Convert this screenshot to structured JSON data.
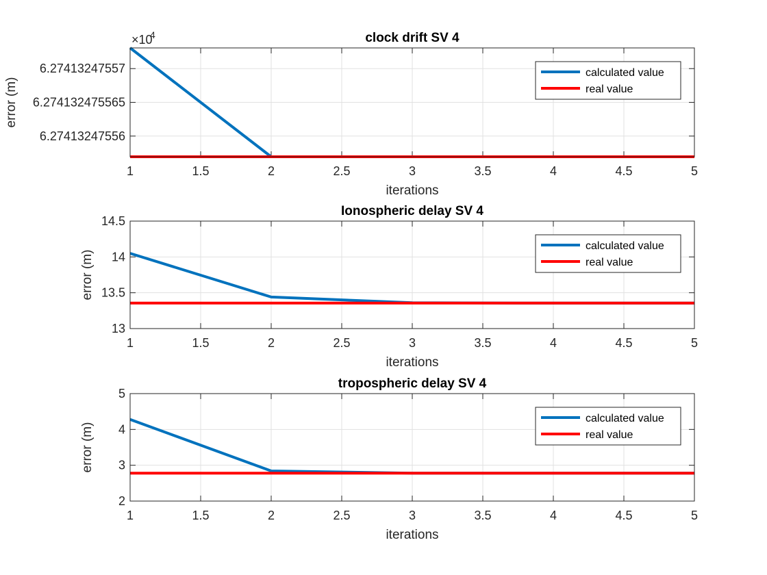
{
  "chart_data": [
    {
      "type": "line",
      "title": "clock drift SV 4",
      "xlabel": "iterations",
      "ylabel": "error (m)",
      "exponent_label": "×10",
      "exponent_power": "4",
      "x": [
        1,
        2,
        3,
        4,
        5
      ],
      "xlim": [
        1,
        5
      ],
      "xticks": [
        1,
        1.5,
        2,
        2.5,
        3,
        3.5,
        4,
        4.5,
        5
      ],
      "xtick_labels": [
        "1",
        "1.5",
        "2",
        "2.5",
        "3",
        "3.5",
        "4",
        "4.5",
        "5"
      ],
      "ylim": [
        0,
        1
      ],
      "yticks": [
        0.19,
        0.5,
        0.81
      ],
      "ytick_labels": [
        "6.27413247556",
        "6.274132475565",
        "6.27413247557"
      ],
      "legend_location": "top-right",
      "series": [
        {
          "name": "calculated value",
          "color": "#0072BD",
          "values": [
            1.0,
            0.0,
            0.0,
            0.0,
            0.0
          ]
        },
        {
          "name": "real value",
          "color": "#FF0000",
          "values": [
            0.0,
            0.0,
            0.0,
            0.0,
            0.0
          ]
        }
      ]
    },
    {
      "type": "line",
      "title": "Ionospheric delay SV 4",
      "xlabel": "iterations",
      "ylabel": "error (m)",
      "x": [
        1,
        2,
        3,
        4,
        5
      ],
      "xlim": [
        1,
        5
      ],
      "xticks": [
        1,
        1.5,
        2,
        2.5,
        3,
        3.5,
        4,
        4.5,
        5
      ],
      "xtick_labels": [
        "1",
        "1.5",
        "2",
        "2.5",
        "3",
        "3.5",
        "4",
        "4.5",
        "5"
      ],
      "ylim": [
        13,
        14.5
      ],
      "yticks": [
        13,
        13.5,
        14,
        14.5
      ],
      "ytick_labels": [
        "13",
        "13.5",
        "14",
        "14.5"
      ],
      "legend_location": "top-right",
      "series": [
        {
          "name": "calculated value",
          "color": "#0072BD",
          "values": [
            14.05,
            13.44,
            13.36,
            13.355,
            13.355
          ]
        },
        {
          "name": "real value",
          "color": "#FF0000",
          "values": [
            13.355,
            13.355,
            13.355,
            13.355,
            13.355
          ]
        }
      ]
    },
    {
      "type": "line",
      "title": "tropospheric delay SV 4",
      "xlabel": "iterations",
      "ylabel": "error (m)",
      "x": [
        1,
        2,
        3,
        4,
        5
      ],
      "xlim": [
        1,
        5
      ],
      "xticks": [
        1,
        1.5,
        2,
        2.5,
        3,
        3.5,
        4,
        4.5,
        5
      ],
      "xtick_labels": [
        "1",
        "1.5",
        "2",
        "2.5",
        "3",
        "3.5",
        "4",
        "4.5",
        "5"
      ],
      "ylim": [
        2,
        5
      ],
      "yticks": [
        2,
        3,
        4,
        5
      ],
      "ytick_labels": [
        "2",
        "3",
        "4",
        "5"
      ],
      "legend_location": "top-right",
      "series": [
        {
          "name": "calculated value",
          "color": "#0072BD",
          "values": [
            4.28,
            2.84,
            2.78,
            2.78,
            2.78
          ]
        },
        {
          "name": "real value",
          "color": "#FF0000",
          "values": [
            2.78,
            2.78,
            2.78,
            2.78,
            2.78
          ]
        }
      ]
    }
  ]
}
